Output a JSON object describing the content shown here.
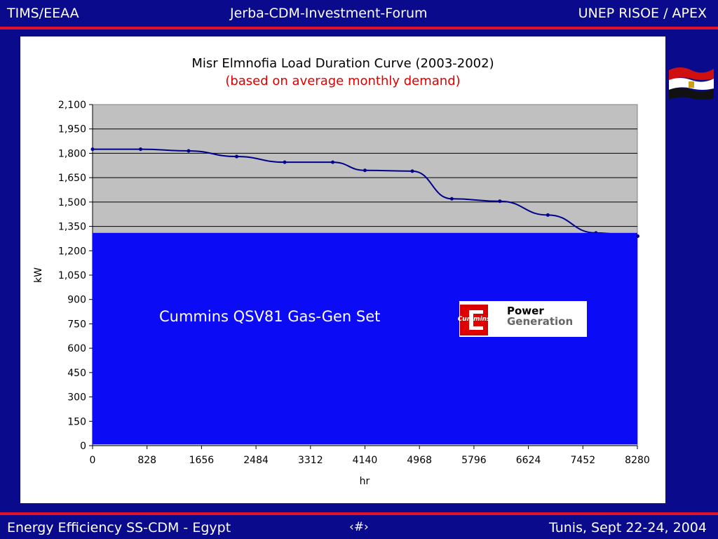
{
  "header": {
    "left": "TIMS/EEAA",
    "center": "Jerba-CDM-Investment-Forum",
    "right": "UNEP RISOE / APEX"
  },
  "footer": {
    "left": "Energy Efficiency SS-CDM - Egypt",
    "center": "‹#›",
    "right": "Tunis,  Sept 22-24, 2004"
  },
  "colors": {
    "background": "#0a0a8c",
    "accent_line": "#e0122a",
    "plot_bg": "#c0c0c0",
    "series": "#00008b",
    "overlay": "#0b0bf5",
    "subtitle": "#e00000"
  },
  "flag_icon": "egypt-flag-icon",
  "overlay": {
    "text": "Cummins QSV81 Gas-Gen Set",
    "logo": {
      "brand": "Cummins",
      "line1": "Power",
      "line2": "Generation"
    }
  },
  "chart_data": {
    "type": "line",
    "title": "Misr Elmnofia Load Duration Curve (2003-2002)",
    "subtitle": "(based on average monthly demand)",
    "xlabel": "hr",
    "ylabel": "kW",
    "xlim": [
      0,
      8280
    ],
    "ylim": [
      0,
      2100
    ],
    "x_ticks": [
      "0",
      "828",
      "1656",
      "2484",
      "3312",
      "4140",
      "4968",
      "5796",
      "6624",
      "7452",
      "8280"
    ],
    "y_ticks": [
      "0",
      "150",
      "300",
      "450",
      "600",
      "750",
      "900",
      "1,050",
      "1,200",
      "1,350",
      "1,500",
      "1,650",
      "1,800",
      "1,950",
      "2,100"
    ],
    "grid": "horizontal",
    "legend": "none",
    "series": [
      {
        "x": [
          0,
          730,
          1460,
          2190,
          2920,
          3650,
          4140,
          4860,
          5460,
          6190,
          6920,
          7650,
          8280
        ],
        "y": [
          1825,
          1825,
          1815,
          1780,
          1745,
          1745,
          1695,
          1690,
          1520,
          1505,
          1420,
          1310,
          1290
        ]
      }
    ],
    "overlay_band_kw": 1310
  }
}
